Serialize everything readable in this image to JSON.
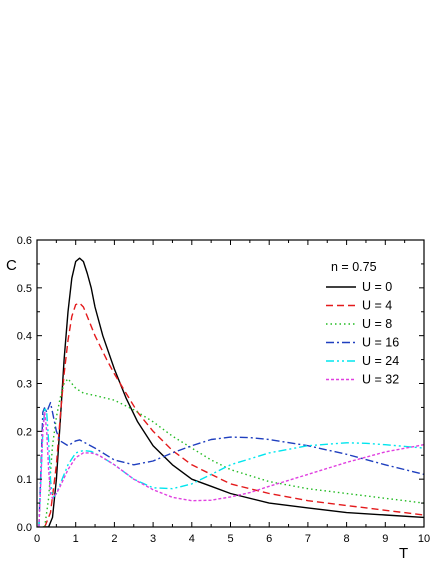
{
  "chart_data": {
    "type": "line",
    "title": "",
    "xlabel": "T",
    "ylabel": "C",
    "xlim": [
      0,
      10
    ],
    "ylim": [
      0,
      0.6
    ],
    "xticks": [
      "0",
      "1",
      "2",
      "3",
      "4",
      "5",
      "6",
      "7",
      "8",
      "9",
      "10"
    ],
    "yticks": [
      "0.0",
      "0.1",
      "0.2",
      "0.3",
      "0.4",
      "0.5",
      "0.6"
    ],
    "legend_title": "n = 0.75",
    "legend_position": "top-right",
    "grid": false,
    "series": [
      {
        "name": "U = 0",
        "color": "#000000",
        "dash": "solid",
        "x": [
          0.15,
          0.3,
          0.4,
          0.5,
          0.6,
          0.7,
          0.8,
          0.9,
          1.0,
          1.1,
          1.2,
          1.3,
          1.4,
          1.5,
          1.7,
          2.0,
          2.3,
          2.6,
          3.0,
          3.5,
          4.0,
          4.5,
          5.0,
          6.0,
          7.0,
          8.0,
          9.0,
          10.0
        ],
        "y": [
          0.0,
          0.0,
          0.02,
          0.1,
          0.22,
          0.35,
          0.45,
          0.52,
          0.555,
          0.562,
          0.555,
          0.53,
          0.5,
          0.46,
          0.4,
          0.33,
          0.27,
          0.22,
          0.17,
          0.13,
          0.1,
          0.085,
          0.07,
          0.05,
          0.04,
          0.03,
          0.025,
          0.02
        ]
      },
      {
        "name": "U = 4",
        "color": "#e41a1c",
        "dash": "dashed",
        "x": [
          0.2,
          0.35,
          0.5,
          0.6,
          0.7,
          0.8,
          0.9,
          1.0,
          1.1,
          1.2,
          1.3,
          1.5,
          1.8,
          2.0,
          2.3,
          2.6,
          3.0,
          3.5,
          4.0,
          4.5,
          5.0,
          6.0,
          7.0,
          8.0,
          9.0,
          10.0
        ],
        "y": [
          0.0,
          0.03,
          0.13,
          0.23,
          0.32,
          0.39,
          0.44,
          0.465,
          0.468,
          0.46,
          0.44,
          0.4,
          0.35,
          0.32,
          0.28,
          0.24,
          0.2,
          0.16,
          0.13,
          0.11,
          0.09,
          0.07,
          0.055,
          0.045,
          0.035,
          0.025
        ]
      },
      {
        "name": "U = 8",
        "color": "#22bb22",
        "dash": "dotted",
        "x": [
          0.2,
          0.3,
          0.4,
          0.5,
          0.6,
          0.7,
          0.8,
          0.9,
          1.0,
          1.2,
          1.5,
          2.0,
          2.5,
          3.0,
          3.5,
          4.0,
          4.5,
          5.0,
          6.0,
          7.0,
          8.0,
          9.0,
          10.0
        ],
        "y": [
          0.0,
          0.06,
          0.17,
          0.23,
          0.27,
          0.3,
          0.31,
          0.3,
          0.29,
          0.28,
          0.275,
          0.265,
          0.245,
          0.22,
          0.19,
          0.165,
          0.14,
          0.12,
          0.095,
          0.08,
          0.07,
          0.06,
          0.05
        ]
      },
      {
        "name": "U = 16",
        "color": "#1f3fbf",
        "dash": "dash-dot",
        "x": [
          0.05,
          0.1,
          0.15,
          0.2,
          0.25,
          0.3,
          0.35,
          0.4,
          0.5,
          0.6,
          0.8,
          1.0,
          1.1,
          1.2,
          1.5,
          2.0,
          2.5,
          3.0,
          3.5,
          4.0,
          4.5,
          5.0,
          5.5,
          6.0,
          7.0,
          8.0,
          9.0,
          10.0
        ],
        "y": [
          0.0,
          0.12,
          0.24,
          0.25,
          0.24,
          0.25,
          0.26,
          0.24,
          0.2,
          0.18,
          0.17,
          0.18,
          0.182,
          0.178,
          0.165,
          0.14,
          0.13,
          0.138,
          0.155,
          0.17,
          0.183,
          0.188,
          0.187,
          0.183,
          0.17,
          0.152,
          0.13,
          0.11
        ]
      },
      {
        "name": "U = 24",
        "color": "#00e5ee",
        "dash": "dash-dot-dot",
        "x": [
          0.05,
          0.1,
          0.15,
          0.2,
          0.25,
          0.3,
          0.35,
          0.4,
          0.5,
          0.6,
          0.8,
          1.0,
          1.2,
          1.4,
          1.6,
          2.0,
          2.5,
          3.0,
          3.5,
          4.0,
          4.5,
          5.0,
          6.0,
          7.0,
          8.0,
          8.5,
          9.0,
          10.0
        ],
        "y": [
          0.0,
          0.1,
          0.2,
          0.25,
          0.24,
          0.18,
          0.1,
          0.06,
          0.07,
          0.09,
          0.13,
          0.155,
          0.16,
          0.158,
          0.15,
          0.13,
          0.1,
          0.082,
          0.08,
          0.09,
          0.11,
          0.13,
          0.155,
          0.17,
          0.176,
          0.175,
          0.172,
          0.165
        ]
      },
      {
        "name": "U = 32",
        "color": "#e040e0",
        "dash": "short-dash",
        "x": [
          0.05,
          0.1,
          0.15,
          0.2,
          0.25,
          0.3,
          0.35,
          0.4,
          0.5,
          0.6,
          0.8,
          1.0,
          1.2,
          1.4,
          1.6,
          2.0,
          2.5,
          3.0,
          3.5,
          4.0,
          4.5,
          5.0,
          5.5,
          6.0,
          7.0,
          8.0,
          9.0,
          10.0
        ],
        "y": [
          0.0,
          0.1,
          0.2,
          0.24,
          0.2,
          0.12,
          0.07,
          0.06,
          0.07,
          0.085,
          0.12,
          0.145,
          0.155,
          0.155,
          0.15,
          0.13,
          0.1,
          0.078,
          0.062,
          0.055,
          0.056,
          0.063,
          0.072,
          0.085,
          0.11,
          0.135,
          0.157,
          0.172
        ]
      }
    ]
  }
}
